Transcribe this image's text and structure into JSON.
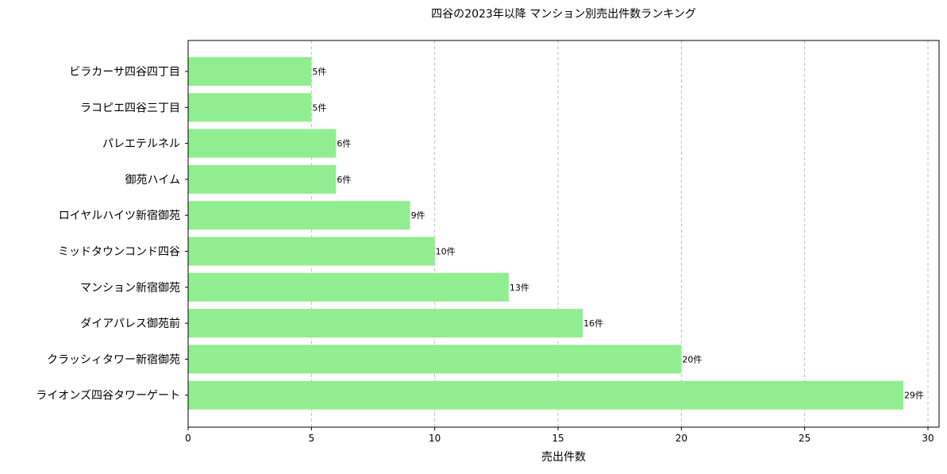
{
  "chart_data": {
    "type": "bar",
    "orientation": "horizontal",
    "title": "四谷の2023年以降 マンション別売出件数ランキング",
    "xlabel": "売出件数",
    "ylabel": "",
    "categories": [
      "ビラカーサ四谷四丁目",
      "ラコピエ四谷三丁目",
      "パレエテルネル",
      "御苑ハイム",
      "ロイヤルハイツ新宿御苑",
      "ミッドタウンコンド四谷",
      "マンション新宿御苑",
      "ダイアパレス御苑前",
      "クラッシィタワー新宿御苑",
      "ライオンズ四谷タワーゲート"
    ],
    "values": [
      5,
      5,
      6,
      6,
      9,
      10,
      13,
      16,
      20,
      29
    ],
    "data_labels": [
      "5件",
      "5件",
      "6件",
      "6件",
      "9件",
      "10件",
      "13件",
      "16件",
      "20件",
      "29件"
    ],
    "xlim": [
      0,
      30.45
    ],
    "xticks": [
      "0",
      "5",
      "10",
      "15",
      "20",
      "25",
      "30"
    ],
    "grid": "x-axis dashed",
    "bar_color": "#90ee90"
  }
}
